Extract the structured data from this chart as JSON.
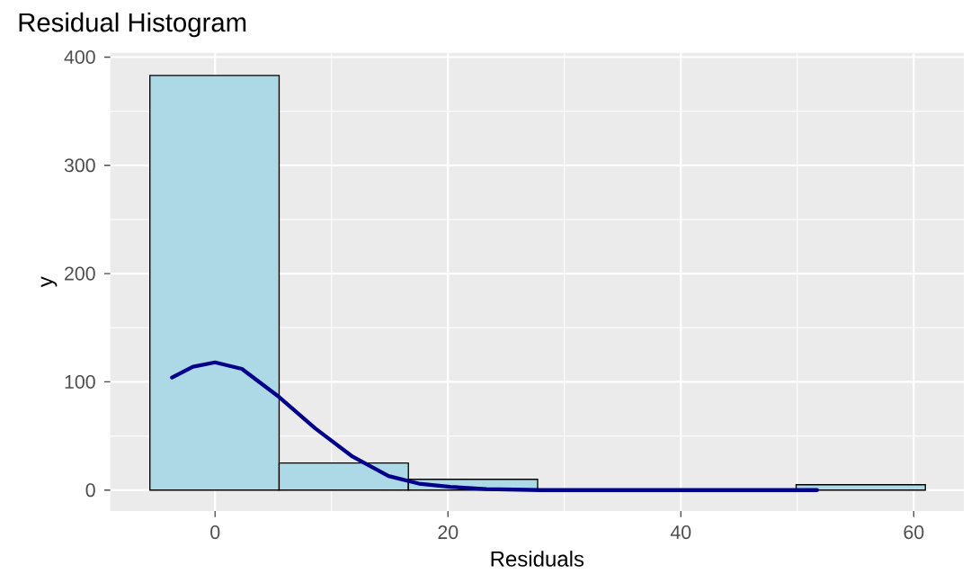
{
  "chart_data": {
    "type": "histogram",
    "title": "Residual Histogram",
    "xlabel": "Residuals",
    "ylabel": "y",
    "bins": [
      -5.6,
      5.5,
      16.6,
      27.7,
      38.8,
      49.9,
      61.0
    ],
    "series": [
      {
        "type": "histogram",
        "color": "#add8e6",
        "values": [
          383,
          25,
          10,
          0,
          0,
          5
        ]
      },
      {
        "type": "line",
        "color": "#00008b",
        "x": [
          -3.7,
          -1.9,
          0,
          2.3,
          5.5,
          8.6,
          11.8,
          14.9,
          17.5,
          20.2,
          23.3,
          28,
          35,
          45,
          51.7
        ],
        "values": [
          104,
          114,
          118,
          112,
          86,
          57,
          31,
          13,
          6,
          3,
          1,
          0,
          0,
          0,
          0
        ]
      }
    ],
    "xlim": [
      -9,
      64.3
    ],
    "ylim": [
      -19.3,
      404
    ],
    "xticks": [
      0,
      20,
      40,
      60
    ],
    "yticks": [
      0,
      100,
      200,
      300,
      400
    ],
    "grid": true
  }
}
